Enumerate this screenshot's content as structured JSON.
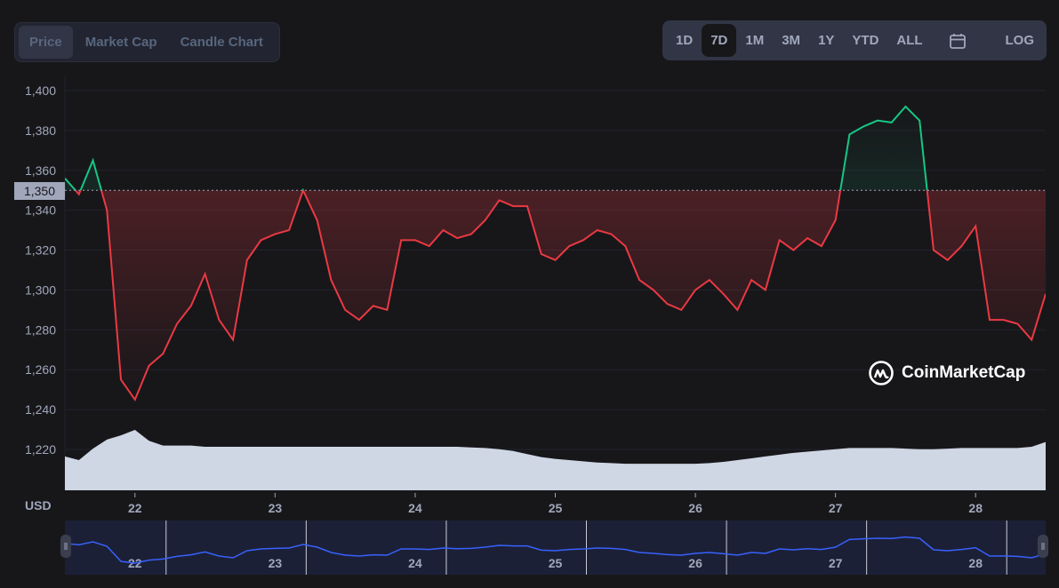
{
  "chart_tabs": [
    {
      "label": "Price",
      "active": true
    },
    {
      "label": "Market Cap",
      "active": false
    },
    {
      "label": "Candle Chart",
      "active": false
    }
  ],
  "ranges": [
    {
      "label": "1D"
    },
    {
      "label": "7D",
      "active": true
    },
    {
      "label": "1M"
    },
    {
      "label": "3M"
    },
    {
      "label": "1Y"
    },
    {
      "label": "YTD"
    },
    {
      "label": "ALL"
    }
  ],
  "calendar_icon": "calendar-icon",
  "log_label": "LOG",
  "currency_label": "USD",
  "current_price_label": "1,350",
  "watermark": "CoinMarketCap",
  "colors": {
    "up": "#16c784",
    "down": "#ea3943",
    "volume": "#cfd6e4",
    "navigator_line": "#3861fb"
  },
  "chart_data": {
    "type": "line",
    "title": "",
    "xlabel": "",
    "ylabel": "USD",
    "x_start_day": 21.5,
    "x_step_day": 0.1,
    "xlim": [
      21.5,
      28.5
    ],
    "ylim": [
      1200,
      1405
    ],
    "yticks": [
      1220,
      1240,
      1260,
      1280,
      1300,
      1320,
      1340,
      1360,
      1380,
      1400
    ],
    "ytick_labels": [
      "1,220",
      "1,240",
      "1,260",
      "1,280",
      "1,300",
      "1,320",
      "1,340",
      "1,360",
      "1,380",
      "1,400"
    ],
    "xticks": [
      22,
      23,
      24,
      25,
      26,
      27,
      28
    ],
    "xtick_labels": [
      "22",
      "23",
      "24",
      "25",
      "26",
      "27",
      "28"
    ],
    "reference_price": 1350,
    "grid": true,
    "price": [
      1356,
      1348,
      1365,
      1340,
      1255,
      1245,
      1262,
      1268,
      1283,
      1292,
      1308,
      1285,
      1275,
      1315,
      1325,
      1328,
      1330,
      1350,
      1335,
      1305,
      1290,
      1285,
      1292,
      1290,
      1325,
      1325,
      1322,
      1330,
      1326,
      1328,
      1335,
      1345,
      1342,
      1342,
      1318,
      1315,
      1322,
      1325,
      1330,
      1328,
      1322,
      1305,
      1300,
      1293,
      1290,
      1300,
      1305,
      1298,
      1290,
      1305,
      1300,
      1325,
      1320,
      1326,
      1322,
      1335,
      1378,
      1382,
      1385,
      1384,
      1392,
      1385,
      1320,
      1315,
      1322,
      1332,
      1285,
      1285,
      1283,
      1275,
      1298
    ],
    "volume_relative": [
      0.56,
      0.5,
      0.69,
      0.84,
      0.91,
      1.0,
      0.82,
      0.74,
      0.74,
      0.74,
      0.72,
      0.72,
      0.72,
      0.72,
      0.72,
      0.72,
      0.72,
      0.72,
      0.72,
      0.72,
      0.72,
      0.72,
      0.72,
      0.72,
      0.72,
      0.72,
      0.72,
      0.72,
      0.72,
      0.71,
      0.7,
      0.68,
      0.65,
      0.6,
      0.55,
      0.52,
      0.5,
      0.48,
      0.46,
      0.45,
      0.44,
      0.44,
      0.44,
      0.44,
      0.44,
      0.44,
      0.45,
      0.47,
      0.5,
      0.53,
      0.56,
      0.59,
      0.62,
      0.64,
      0.66,
      0.68,
      0.7,
      0.7,
      0.7,
      0.7,
      0.69,
      0.68,
      0.68,
      0.69,
      0.7,
      0.7,
      0.7,
      0.7,
      0.7,
      0.72,
      0.8
    ]
  }
}
